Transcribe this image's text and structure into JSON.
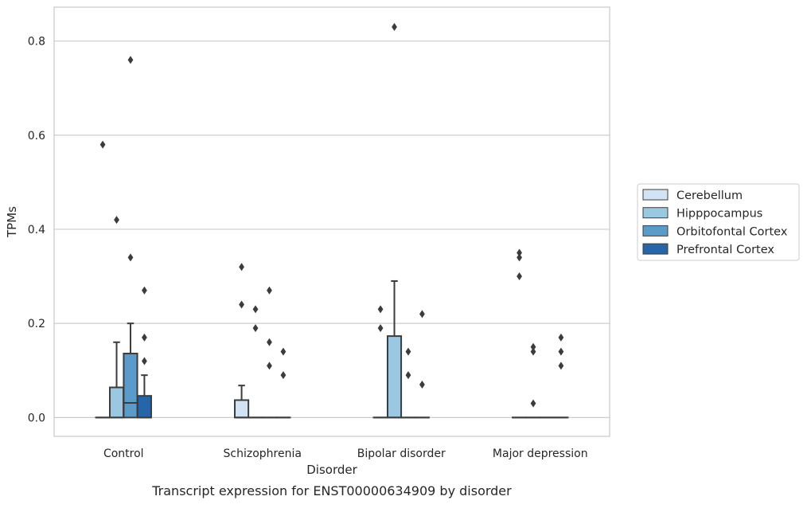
{
  "chart_data": {
    "type": "box",
    "title": "",
    "caption": "Transcript expression for ENST00000634909 by disorder",
    "xlabel": "Disorder",
    "ylabel": "TPMs",
    "categories": [
      "Control",
      "Schizophrenia",
      "Bipolar disorder",
      "Major depression"
    ],
    "ylim": [
      -0.04,
      0.872
    ],
    "yticks": [
      0.0,
      0.2,
      0.4,
      0.6,
      0.8
    ],
    "ytick_labels": [
      "0.0",
      "0.2",
      "0.4",
      "0.6",
      "0.8"
    ],
    "grid": "horizontal",
    "legend_position": "right",
    "series": [
      {
        "name": "Cerebellum",
        "color": "#d2e3f3",
        "boxes": [
          {
            "q1": 0,
            "median": 0,
            "q3": 0,
            "whislo": 0,
            "whishi": 0,
            "fliers": [
              0.58
            ]
          },
          {
            "q1": 0,
            "median": 0,
            "q3": 0.037,
            "whislo": 0,
            "whishi": 0.068,
            "fliers": [
              0.32,
              0.24
            ]
          },
          {
            "q1": 0,
            "median": 0,
            "q3": 0,
            "whislo": 0,
            "whishi": 0,
            "fliers": [
              0.23,
              0.19
            ]
          },
          {
            "q1": 0,
            "median": 0,
            "q3": 0,
            "whislo": 0,
            "whishi": 0,
            "fliers": [
              0.35,
              0.34,
              0.3
            ]
          }
        ]
      },
      {
        "name": "Hipppocampus",
        "color": "#9ac8e0",
        "boxes": [
          {
            "q1": 0,
            "median": 0,
            "q3": 0.064,
            "whislo": 0,
            "whishi": 0.16,
            "fliers": [
              0.42
            ]
          },
          {
            "q1": 0,
            "median": 0,
            "q3": 0,
            "whislo": 0,
            "whishi": 0,
            "fliers": [
              0.23,
              0.19
            ]
          },
          {
            "q1": 0,
            "median": 0,
            "q3": 0.173,
            "whislo": 0,
            "whishi": 0.29,
            "fliers": [
              0.83
            ]
          },
          {
            "q1": 0,
            "median": 0,
            "q3": 0,
            "whislo": 0,
            "whishi": 0,
            "fliers": [
              0.15,
              0.14,
              0.03
            ]
          }
        ]
      },
      {
        "name": "Orbitofontal Cortex",
        "color": "#5a9bc9",
        "boxes": [
          {
            "q1": 0,
            "median": 0.031,
            "q3": 0.136,
            "whislo": 0,
            "whishi": 0.2,
            "fliers": [
              0.76,
              0.34
            ]
          },
          {
            "q1": 0,
            "median": 0,
            "q3": 0,
            "whislo": 0,
            "whishi": 0,
            "fliers": [
              0.27,
              0.16,
              0.11
            ]
          },
          {
            "q1": 0,
            "median": 0,
            "q3": 0,
            "whislo": 0,
            "whishi": 0,
            "fliers": [
              0.14,
              0.09
            ]
          },
          {
            "q1": 0,
            "median": 0,
            "q3": 0,
            "whislo": 0,
            "whishi": 0,
            "fliers": []
          }
        ]
      },
      {
        "name": "Prefrontal Cortex",
        "color": "#2666a8",
        "boxes": [
          {
            "q1": 0,
            "median": 0,
            "q3": 0.046,
            "whislo": 0,
            "whishi": 0.09,
            "fliers": [
              0.27,
              0.17,
              0.12
            ]
          },
          {
            "q1": 0,
            "median": 0,
            "q3": 0,
            "whislo": 0,
            "whishi": 0,
            "fliers": [
              0.14,
              0.09
            ]
          },
          {
            "q1": 0,
            "median": 0,
            "q3": 0,
            "whislo": 0,
            "whishi": 0,
            "fliers": [
              0.22,
              0.07
            ]
          },
          {
            "q1": 0,
            "median": 0,
            "q3": 0,
            "whislo": 0,
            "whishi": 0,
            "fliers": [
              0.17,
              0.14,
              0.11
            ]
          }
        ]
      }
    ]
  }
}
